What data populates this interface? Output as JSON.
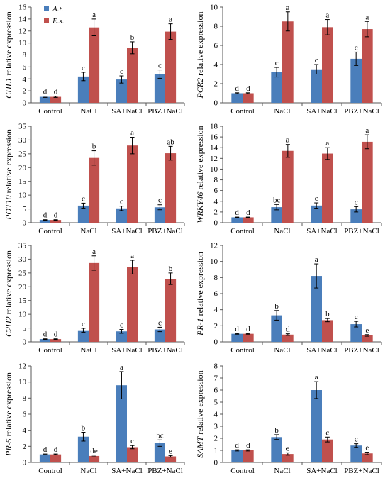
{
  "legend": {
    "entries": [
      {
        "label": "A.t.",
        "color": "#4a7ebb"
      },
      {
        "label": "E.s.",
        "color": "#c0504d"
      }
    ]
  },
  "colors": {
    "at": "#4a7ebb",
    "es": "#c0504d",
    "axis": "#595959",
    "error": "#000000"
  },
  "chart_data": [
    {
      "type": "bar",
      "gene": "CHL1",
      "ylabel_suffix": " relative expression",
      "categories": [
        "Control",
        "NaCl",
        "SA+NaCl",
        "PBZ+NaCl"
      ],
      "ylim": [
        0,
        16
      ],
      "yticks": [
        0,
        2,
        4,
        6,
        8,
        10,
        12,
        14,
        16
      ],
      "series": [
        {
          "name": "A.t.",
          "values": [
            1.0,
            4.4,
            3.9,
            4.8
          ],
          "errors": [
            0.1,
            0.7,
            0.6,
            0.7
          ],
          "letters": [
            "d",
            "c",
            "c",
            "c"
          ]
        },
        {
          "name": "E.s.",
          "values": [
            1.0,
            12.6,
            9.2,
            11.9
          ],
          "errors": [
            0.1,
            1.4,
            1.0,
            1.3
          ],
          "letters": [
            "d",
            "a",
            "b",
            "a"
          ]
        }
      ]
    },
    {
      "type": "bar",
      "gene": "PCR2",
      "ylabel_suffix": " relative expression",
      "categories": [
        "Control",
        "NaCl",
        "SA+NaCl",
        "PBZ+NaCl"
      ],
      "ylim": [
        0,
        10
      ],
      "yticks": [
        0,
        2,
        4,
        6,
        8,
        10
      ],
      "series": [
        {
          "name": "A.t.",
          "values": [
            1.0,
            3.2,
            3.5,
            4.6
          ],
          "errors": [
            0.05,
            0.5,
            0.5,
            0.7
          ],
          "letters": [
            "d",
            "c",
            "c",
            "c"
          ]
        },
        {
          "name": "E.s.",
          "values": [
            1.0,
            8.5,
            7.9,
            7.7
          ],
          "errors": [
            0.05,
            1.0,
            0.8,
            0.8
          ],
          "letters": [
            "d",
            "a",
            "a",
            "a"
          ]
        }
      ]
    },
    {
      "type": "bar",
      "gene": "POT10",
      "ylabel_suffix": " relative expression",
      "categories": [
        "Control",
        "NaCl",
        "SA+NaCl",
        "PBZ+NaCl"
      ],
      "ylim": [
        0,
        35
      ],
      "yticks": [
        0,
        5,
        10,
        15,
        20,
        25,
        30,
        35
      ],
      "series": [
        {
          "name": "A.t.",
          "values": [
            1.0,
            6.2,
            5.2,
            5.6
          ],
          "errors": [
            0.1,
            0.9,
            0.8,
            0.9
          ],
          "letters": [
            "d",
            "c",
            "c",
            "c"
          ]
        },
        {
          "name": "E.s.",
          "values": [
            1.0,
            23.5,
            28.0,
            25.2
          ],
          "errors": [
            0.1,
            2.6,
            3.0,
            2.5
          ],
          "letters": [
            "d",
            "b",
            "a",
            "ab"
          ]
        }
      ]
    },
    {
      "type": "bar",
      "gene": "WRKY46",
      "ylabel_suffix": " relative expression",
      "categories": [
        "Control",
        "NaCl",
        "SA+NaCl",
        "PBZ+NaCl"
      ],
      "ylim": [
        0,
        18
      ],
      "yticks": [
        0,
        2,
        4,
        6,
        8,
        10,
        12,
        14,
        16,
        18
      ],
      "series": [
        {
          "name": "A.t.",
          "values": [
            1.0,
            2.9,
            3.2,
            2.5
          ],
          "errors": [
            0.05,
            0.5,
            0.5,
            0.5
          ],
          "letters": [
            "d",
            "bc",
            "c",
            "c"
          ]
        },
        {
          "name": "E.s.",
          "values": [
            1.0,
            13.4,
            12.9,
            15.1
          ],
          "errors": [
            0.05,
            1.2,
            1.1,
            1.3
          ],
          "letters": [
            "d",
            "a",
            "a",
            "a"
          ]
        }
      ]
    },
    {
      "type": "bar",
      "gene": "C2H2",
      "ylabel_suffix": " relative expression",
      "categories": [
        "Control",
        "NaCl",
        "SA+NaCl",
        "PBZ+NaCl"
      ],
      "ylim": [
        0,
        35
      ],
      "yticks": [
        0,
        5,
        10,
        15,
        20,
        25,
        30,
        35
      ],
      "series": [
        {
          "name": "A.t.",
          "values": [
            1.0,
            4.2,
            3.8,
            4.5
          ],
          "errors": [
            0.1,
            0.7,
            0.7,
            0.8
          ],
          "letters": [
            "d",
            "c",
            "c",
            "c"
          ]
        },
        {
          "name": "E.s.",
          "values": [
            1.0,
            28.6,
            27.1,
            22.9
          ],
          "errors": [
            0.1,
            2.6,
            2.5,
            2.1
          ],
          "letters": [
            "d",
            "a",
            "a",
            "b"
          ]
        }
      ]
    },
    {
      "type": "bar",
      "gene": "PR-1",
      "ylabel_suffix": " relative expression",
      "categories": [
        "Control",
        "NaCl",
        "SA+NaCl",
        "PBZ+NaCl"
      ],
      "ylim": [
        0,
        12
      ],
      "yticks": [
        0,
        2,
        4,
        6,
        8,
        10,
        12
      ],
      "series": [
        {
          "name": "A.t.",
          "values": [
            1.0,
            3.3,
            8.2,
            2.2
          ],
          "errors": [
            0.05,
            0.6,
            1.5,
            0.35
          ],
          "letters": [
            "d",
            "b",
            "a",
            "c"
          ]
        },
        {
          "name": "E.s.",
          "values": [
            1.0,
            0.9,
            2.7,
            0.8
          ],
          "errors": [
            0.05,
            0.1,
            0.2,
            0.1
          ],
          "letters": [
            "d",
            "d",
            "b",
            "e"
          ]
        }
      ]
    },
    {
      "type": "bar",
      "gene": "PR-5",
      "ylabel_suffix": " relative expression",
      "categories": [
        "Control",
        "NaCl",
        "SA+NaCl",
        "PBZ+NaCl"
      ],
      "ylim": [
        0,
        12
      ],
      "yticks": [
        0,
        2,
        4,
        6,
        8,
        10,
        12
      ],
      "series": [
        {
          "name": "A.t.",
          "values": [
            1.0,
            3.2,
            9.6,
            2.4
          ],
          "errors": [
            0.05,
            0.55,
            1.7,
            0.4
          ],
          "letters": [
            "d",
            "b",
            "a",
            "bc"
          ]
        },
        {
          "name": "E.s.",
          "values": [
            1.0,
            0.8,
            1.9,
            0.75
          ],
          "errors": [
            0.05,
            0.1,
            0.2,
            0.1
          ],
          "letters": [
            "d",
            "de",
            "c",
            "e"
          ]
        }
      ]
    },
    {
      "type": "bar",
      "gene": "SAMT",
      "ylabel_suffix": " relative expression",
      "categories": [
        "Control",
        "NaCl",
        "SA+NaCl",
        "PBZ+NaCl"
      ],
      "ylim": [
        0,
        8
      ],
      "yticks": [
        0,
        1,
        2,
        3,
        4,
        5,
        6,
        7,
        8
      ],
      "series": [
        {
          "name": "A.t.",
          "values": [
            1.0,
            2.1,
            6.0,
            1.4
          ],
          "errors": [
            0.05,
            0.2,
            0.7,
            0.15
          ],
          "letters": [
            "d",
            "b",
            "a",
            "c"
          ]
        },
        {
          "name": "E.s.",
          "values": [
            1.0,
            0.7,
            1.9,
            0.75
          ],
          "errors": [
            0.05,
            0.1,
            0.2,
            0.1
          ],
          "letters": [
            "d",
            "e",
            "c",
            "e"
          ]
        }
      ]
    }
  ]
}
